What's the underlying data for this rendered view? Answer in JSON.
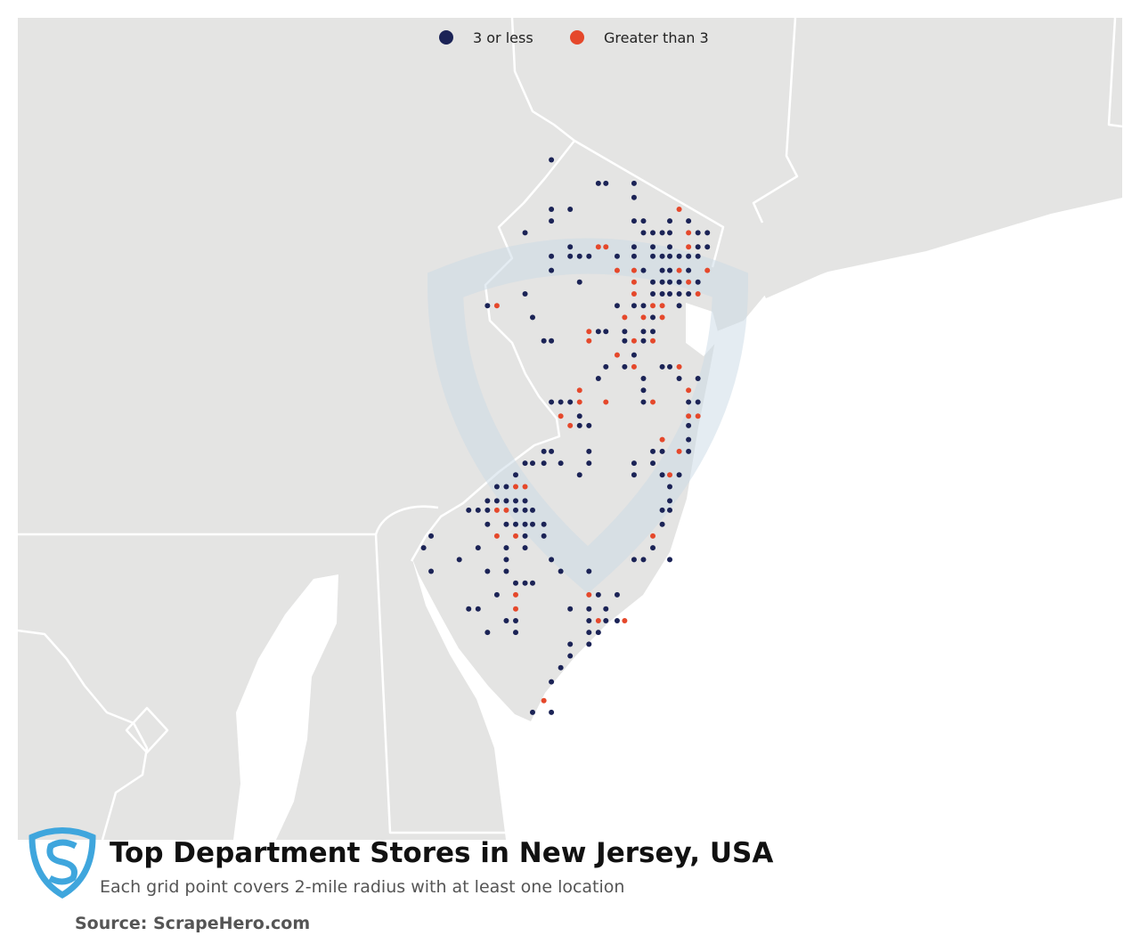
{
  "map": {
    "title": "Top Department Stores in New Jersey, USA",
    "subtitle": "Each grid point covers 2-mile radius with at least one location",
    "source": "Source: ScrapeHero.com",
    "legend": [
      {
        "name": "3 or less",
        "color": "#1b2356"
      },
      {
        "name": "Greater than 3",
        "color": "#e5482b"
      }
    ],
    "rows": [
      {
        "lat": 41.28,
        "dots": [
          [
            -74.81,
            0
          ]
        ]
      },
      {
        "lat": 41.18,
        "dots": [
          [
            -74.56,
            0
          ],
          [
            -74.52,
            0
          ],
          [
            -74.37,
            0
          ]
        ]
      },
      {
        "lat": 41.12,
        "dots": [
          [
            -74.37,
            0
          ]
        ]
      },
      {
        "lat": 41.07,
        "dots": [
          [
            -74.81,
            0
          ],
          [
            -74.71,
            0
          ],
          [
            -74.13,
            1
          ]
        ]
      },
      {
        "lat": 41.02,
        "dots": [
          [
            -74.81,
            0
          ],
          [
            -74.37,
            0
          ],
          [
            -74.32,
            0
          ],
          [
            -74.18,
            0
          ],
          [
            -74.08,
            0
          ]
        ]
      },
      {
        "lat": 40.97,
        "dots": [
          [
            -74.95,
            0
          ],
          [
            -74.32,
            0
          ],
          [
            -74.27,
            0
          ],
          [
            -74.22,
            0
          ],
          [
            -74.18,
            0
          ],
          [
            -74.08,
            1
          ],
          [
            -74.03,
            0
          ],
          [
            -73.98,
            0
          ]
        ]
      },
      {
        "lat": 40.91,
        "dots": [
          [
            -74.71,
            0
          ],
          [
            -74.56,
            1
          ],
          [
            -74.52,
            1
          ],
          [
            -74.37,
            0
          ],
          [
            -74.27,
            0
          ],
          [
            -74.18,
            0
          ],
          [
            -74.08,
            1
          ],
          [
            -74.03,
            0
          ],
          [
            -73.98,
            0
          ]
        ]
      },
      {
        "lat": 40.87,
        "dots": [
          [
            -74.81,
            0
          ],
          [
            -74.71,
            0
          ],
          [
            -74.66,
            0
          ],
          [
            -74.61,
            0
          ],
          [
            -74.46,
            0
          ],
          [
            -74.37,
            0
          ],
          [
            -74.27,
            0
          ],
          [
            -74.22,
            0
          ],
          [
            -74.18,
            0
          ],
          [
            -74.13,
            0
          ],
          [
            -74.08,
            0
          ],
          [
            -74.03,
            0
          ]
        ]
      },
      {
        "lat": 40.81,
        "dots": [
          [
            -74.81,
            0
          ],
          [
            -74.46,
            1
          ],
          [
            -74.37,
            1
          ],
          [
            -74.32,
            0
          ],
          [
            -74.22,
            0
          ],
          [
            -74.18,
            0
          ],
          [
            -74.13,
            1
          ],
          [
            -74.08,
            0
          ],
          [
            -73.98,
            1
          ]
        ]
      },
      {
        "lat": 40.76,
        "dots": [
          [
            -74.66,
            0
          ],
          [
            -74.37,
            1
          ],
          [
            -74.27,
            0
          ],
          [
            -74.22,
            0
          ],
          [
            -74.18,
            0
          ],
          [
            -74.13,
            0
          ],
          [
            -74.08,
            1
          ],
          [
            -74.03,
            0
          ]
        ]
      },
      {
        "lat": 40.71,
        "dots": [
          [
            -74.95,
            0
          ],
          [
            -74.37,
            1
          ],
          [
            -74.27,
            0
          ],
          [
            -74.22,
            0
          ],
          [
            -74.18,
            0
          ],
          [
            -74.13,
            0
          ],
          [
            -74.08,
            0
          ],
          [
            -74.03,
            1
          ]
        ]
      },
      {
        "lat": 40.66,
        "dots": [
          [
            -75.15,
            0
          ],
          [
            -75.1,
            1
          ],
          [
            -74.46,
            0
          ],
          [
            -74.37,
            0
          ],
          [
            -74.32,
            0
          ],
          [
            -74.27,
            1
          ],
          [
            -74.22,
            1
          ],
          [
            -74.13,
            0
          ]
        ]
      },
      {
        "lat": 40.61,
        "dots": [
          [
            -74.91,
            0
          ],
          [
            -74.42,
            1
          ],
          [
            -74.32,
            1
          ],
          [
            -74.27,
            0
          ],
          [
            -74.22,
            1
          ]
        ]
      },
      {
        "lat": 40.55,
        "dots": [
          [
            -74.61,
            1
          ],
          [
            -74.56,
            0
          ],
          [
            -74.52,
            0
          ],
          [
            -74.42,
            0
          ],
          [
            -74.32,
            0
          ],
          [
            -74.27,
            0
          ]
        ]
      },
      {
        "lat": 40.51,
        "dots": [
          [
            -74.85,
            0
          ],
          [
            -74.81,
            0
          ],
          [
            -74.61,
            1
          ],
          [
            -74.42,
            0
          ],
          [
            -74.37,
            1
          ],
          [
            -74.32,
            0
          ],
          [
            -74.27,
            1
          ]
        ]
      },
      {
        "lat": 40.45,
        "dots": [
          [
            -74.46,
            1
          ],
          [
            -74.37,
            0
          ]
        ]
      },
      {
        "lat": 40.4,
        "dots": [
          [
            -74.52,
            0
          ],
          [
            -74.42,
            0
          ],
          [
            -74.37,
            1
          ],
          [
            -74.22,
            0
          ],
          [
            -74.18,
            0
          ],
          [
            -74.13,
            1
          ]
        ]
      },
      {
        "lat": 40.35,
        "dots": [
          [
            -74.56,
            0
          ],
          [
            -74.32,
            0
          ],
          [
            -74.13,
            0
          ],
          [
            -74.03,
            0
          ]
        ]
      },
      {
        "lat": 40.3,
        "dots": [
          [
            -74.66,
            1
          ],
          [
            -74.32,
            0
          ],
          [
            -74.08,
            1
          ]
        ]
      },
      {
        "lat": 40.25,
        "dots": [
          [
            -74.81,
            0
          ],
          [
            -74.76,
            0
          ],
          [
            -74.71,
            0
          ],
          [
            -74.66,
            1
          ],
          [
            -74.52,
            1
          ],
          [
            -74.32,
            0
          ],
          [
            -74.27,
            1
          ],
          [
            -74.08,
            0
          ],
          [
            -74.03,
            0
          ]
        ]
      },
      {
        "lat": 40.19,
        "dots": [
          [
            -74.76,
            1
          ],
          [
            -74.66,
            0
          ],
          [
            -74.08,
            1
          ],
          [
            -74.03,
            1
          ]
        ]
      },
      {
        "lat": 40.15,
        "dots": [
          [
            -74.71,
            1
          ],
          [
            -74.66,
            0
          ],
          [
            -74.61,
            0
          ],
          [
            -74.08,
            0
          ]
        ]
      },
      {
        "lat": 40.09,
        "dots": [
          [
            -74.22,
            1
          ],
          [
            -74.08,
            0
          ]
        ]
      },
      {
        "lat": 40.04,
        "dots": [
          [
            -74.85,
            0
          ],
          [
            -74.81,
            0
          ],
          [
            -74.61,
            0
          ],
          [
            -74.27,
            0
          ],
          [
            -74.22,
            0
          ],
          [
            -74.13,
            1
          ],
          [
            -74.08,
            0
          ]
        ]
      },
      {
        "lat": 39.99,
        "dots": [
          [
            -74.95,
            0
          ],
          [
            -74.91,
            0
          ],
          [
            -74.85,
            0
          ],
          [
            -74.76,
            0
          ],
          [
            -74.61,
            0
          ],
          [
            -74.37,
            0
          ],
          [
            -74.27,
            0
          ]
        ]
      },
      {
        "lat": 39.94,
        "dots": [
          [
            -75.0,
            0
          ],
          [
            -74.66,
            0
          ],
          [
            -74.37,
            0
          ],
          [
            -74.22,
            0
          ],
          [
            -74.18,
            1
          ],
          [
            -74.13,
            0
          ]
        ]
      },
      {
        "lat": 39.89,
        "dots": [
          [
            -75.1,
            0
          ],
          [
            -75.05,
            0
          ],
          [
            -75.0,
            1
          ],
          [
            -74.95,
            1
          ],
          [
            -74.18,
            0
          ]
        ]
      },
      {
        "lat": 39.83,
        "dots": [
          [
            -75.15,
            0
          ],
          [
            -75.1,
            0
          ],
          [
            -75.05,
            0
          ],
          [
            -75.0,
            0
          ],
          [
            -74.95,
            0
          ],
          [
            -74.18,
            0
          ]
        ]
      },
      {
        "lat": 39.79,
        "dots": [
          [
            -75.25,
            0
          ],
          [
            -75.2,
            0
          ],
          [
            -75.15,
            0
          ],
          [
            -75.1,
            1
          ],
          [
            -75.05,
            1
          ],
          [
            -75.0,
            0
          ],
          [
            -74.95,
            0
          ],
          [
            -74.91,
            0
          ],
          [
            -74.22,
            0
          ],
          [
            -74.18,
            0
          ]
        ]
      },
      {
        "lat": 39.73,
        "dots": [
          [
            -75.15,
            0
          ],
          [
            -75.05,
            0
          ],
          [
            -75.0,
            0
          ],
          [
            -74.95,
            0
          ],
          [
            -74.91,
            0
          ],
          [
            -74.85,
            0
          ],
          [
            -74.22,
            0
          ]
        ]
      },
      {
        "lat": 39.68,
        "dots": [
          [
            -75.45,
            0
          ],
          [
            -75.1,
            1
          ],
          [
            -75.0,
            1
          ],
          [
            -74.95,
            0
          ],
          [
            -74.85,
            0
          ],
          [
            -74.27,
            1
          ]
        ]
      },
      {
        "lat": 39.63,
        "dots": [
          [
            -75.49,
            0
          ],
          [
            -75.2,
            0
          ],
          [
            -75.05,
            0
          ],
          [
            -74.95,
            0
          ],
          [
            -74.27,
            0
          ]
        ]
      },
      {
        "lat": 39.58,
        "dots": [
          [
            -75.3,
            0
          ],
          [
            -75.05,
            0
          ],
          [
            -74.81,
            0
          ],
          [
            -74.37,
            0
          ],
          [
            -74.32,
            0
          ],
          [
            -74.18,
            0
          ]
        ]
      },
      {
        "lat": 39.53,
        "dots": [
          [
            -75.45,
            0
          ],
          [
            -75.15,
            0
          ],
          [
            -75.05,
            0
          ],
          [
            -74.76,
            0
          ],
          [
            -74.61,
            0
          ]
        ]
      },
      {
        "lat": 39.48,
        "dots": [
          [
            -75.0,
            0
          ],
          [
            -74.95,
            0
          ],
          [
            -74.91,
            0
          ]
        ]
      },
      {
        "lat": 39.43,
        "dots": [
          [
            -75.1,
            0
          ],
          [
            -75.0,
            1
          ],
          [
            -74.61,
            1
          ],
          [
            -74.56,
            0
          ],
          [
            -74.46,
            0
          ]
        ]
      },
      {
        "lat": 39.37,
        "dots": [
          [
            -75.25,
            0
          ],
          [
            -75.2,
            0
          ],
          [
            -75.0,
            1
          ],
          [
            -74.71,
            0
          ],
          [
            -74.61,
            0
          ],
          [
            -74.52,
            0
          ]
        ]
      },
      {
        "lat": 39.32,
        "dots": [
          [
            -75.05,
            0
          ],
          [
            -75.0,
            0
          ],
          [
            -74.61,
            0
          ],
          [
            -74.56,
            1
          ],
          [
            -74.52,
            0
          ],
          [
            -74.46,
            0
          ],
          [
            -74.42,
            1
          ]
        ]
      },
      {
        "lat": 39.27,
        "dots": [
          [
            -75.15,
            0
          ],
          [
            -75.0,
            0
          ],
          [
            -74.61,
            0
          ],
          [
            -74.56,
            0
          ]
        ]
      },
      {
        "lat": 39.22,
        "dots": [
          [
            -74.71,
            0
          ],
          [
            -74.61,
            0
          ]
        ]
      },
      {
        "lat": 39.17,
        "dots": [
          [
            -74.71,
            0
          ]
        ]
      },
      {
        "lat": 39.12,
        "dots": [
          [
            -74.76,
            0
          ]
        ]
      },
      {
        "lat": 39.06,
        "dots": [
          [
            -74.81,
            0
          ]
        ]
      },
      {
        "lat": 38.98,
        "dots": [
          [
            -74.85,
            1
          ]
        ]
      },
      {
        "lat": 38.93,
        "dots": [
          [
            -74.91,
            0
          ],
          [
            -74.81,
            0
          ]
        ]
      }
    ]
  }
}
